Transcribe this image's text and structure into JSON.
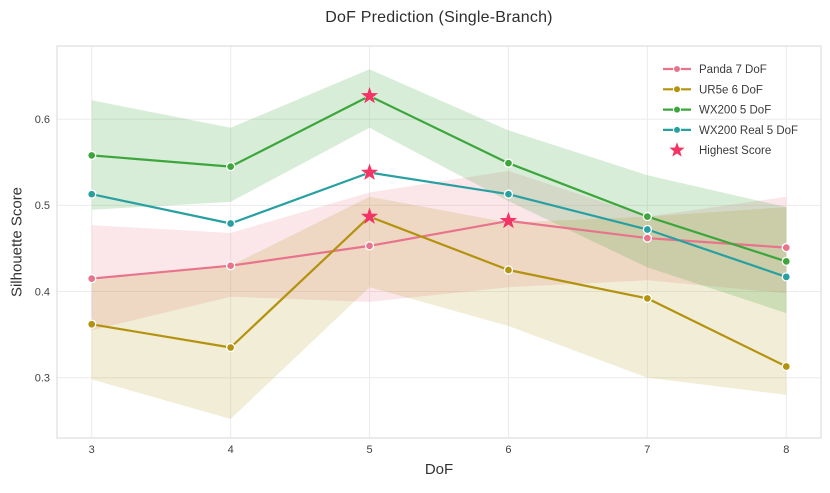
{
  "chart_data": {
    "type": "line",
    "title": "DoF Prediction (Single-Branch)",
    "xlabel": "DoF",
    "ylabel": "Silhouette Score",
    "x": [
      3,
      4,
      5,
      6,
      7,
      8
    ],
    "x_tick_labels": [
      "3",
      "4",
      "5",
      "6",
      "7",
      "8"
    ],
    "y_ticks": [
      0.3,
      0.4,
      0.5,
      0.6
    ],
    "y_tick_labels": [
      "0.3",
      "0.4",
      "0.5",
      "0.6"
    ],
    "xlim": [
      2.75,
      8.25
    ],
    "ylim": [
      0.23,
      0.685
    ],
    "grid": true,
    "legend_position": "upper right",
    "series": [
      {
        "name": "Panda 7 DoF",
        "color": "#e8748c",
        "band_opacity": 0.18,
        "values": [
          0.415,
          0.43,
          0.453,
          0.482,
          0.462,
          0.451
        ],
        "band_lo": [
          0.355,
          0.394,
          0.388,
          0.405,
          0.413,
          0.398
        ],
        "band_hi": [
          0.477,
          0.468,
          0.515,
          0.54,
          0.487,
          0.51
        ]
      },
      {
        "name": "UR5e 6 DoF",
        "color": "#b3920e",
        "band_opacity": 0.17,
        "values": [
          0.362,
          0.335,
          0.487,
          0.425,
          0.392,
          0.313
        ],
        "band_lo": [
          0.298,
          0.252,
          0.405,
          0.36,
          0.3,
          0.28
        ],
        "band_hi": [
          0.413,
          0.43,
          0.51,
          0.48,
          0.487,
          0.498
        ]
      },
      {
        "name": "WX200 5 DoF",
        "color": "#3ca63c",
        "band_opacity": 0.2,
        "values": [
          0.558,
          0.545,
          0.627,
          0.549,
          0.487,
          0.435
        ],
        "band_lo": [
          0.495,
          0.504,
          0.59,
          0.505,
          0.428,
          0.375
        ],
        "band_hi": [
          0.622,
          0.59,
          0.658,
          0.587,
          0.535,
          0.498
        ]
      },
      {
        "name": "WX200 Real 5 DoF",
        "color": "#28a0a2",
        "values": [
          0.513,
          0.479,
          0.538,
          0.513,
          0.472,
          0.417
        ]
      }
    ],
    "highlights": {
      "name": "Highest Score",
      "color": "#f23564",
      "points": [
        {
          "x": 5,
          "y": 0.627
        },
        {
          "x": 5,
          "y": 0.538
        },
        {
          "x": 5,
          "y": 0.487
        },
        {
          "x": 6,
          "y": 0.482
        }
      ]
    }
  },
  "colors": {
    "background": "#ffffff",
    "grid": "#ececec",
    "border": "#d7d7d7",
    "tick_label": "#3f3f3f",
    "title": "#2d2d2d",
    "axis_label": "#333333",
    "legend_text": "#3a3a3a"
  }
}
